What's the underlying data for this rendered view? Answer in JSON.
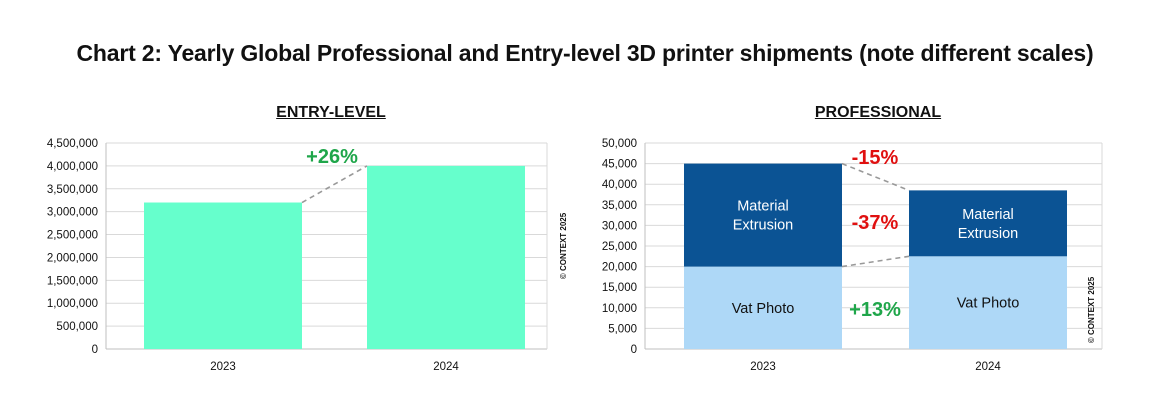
{
  "title": "Chart 2: Yearly Global Professional and Entry-level 3D printer shipments (note different scales)",
  "copyright": "© CONTEXT 2025",
  "colors": {
    "entry_bar": "#66FFCC",
    "material_extrusion": "#0B5394",
    "vat_photo": "#AED8F7",
    "positive": "#1FA64A",
    "negative": "#E01010",
    "connector": "#999999",
    "grid": "#D9D9D9"
  },
  "chart_data": [
    {
      "type": "bar",
      "title": "ENTRY-LEVEL",
      "categories": [
        "2023",
        "2024"
      ],
      "values": [
        3200000,
        4000000
      ],
      "ylim": [
        0,
        4500000
      ],
      "yticks": [
        "0",
        "500,000",
        "1,000,000",
        "1,500,000",
        "2,000,000",
        "2,500,000",
        "3,000,000",
        "3,500,000",
        "4,000,000",
        "4,500,000"
      ],
      "grid": true,
      "annotations": [
        {
          "text": "+26%",
          "color": "positive"
        }
      ]
    },
    {
      "type": "bar",
      "stacked": true,
      "title": "PROFESSIONAL",
      "categories": [
        "2023",
        "2024"
      ],
      "series": [
        {
          "name": "Vat Photo",
          "values": [
            20000,
            22500
          ],
          "color": "vat_photo"
        },
        {
          "name": "Material\nExtrusion",
          "values": [
            25000,
            16000
          ],
          "color": "material_extrusion"
        }
      ],
      "ylim": [
        0,
        50000
      ],
      "yticks": [
        "0",
        "5,000",
        "10,000",
        "15,000",
        "20,000",
        "25,000",
        "30,000",
        "35,000",
        "40,000",
        "45,000",
        "50,000"
      ],
      "grid": true,
      "annotations": [
        {
          "text": "-15%",
          "color": "negative",
          "target": "total"
        },
        {
          "text": "-37%",
          "color": "negative",
          "target": "Material Extrusion"
        },
        {
          "text": "+13%",
          "color": "positive",
          "target": "Vat Photo"
        }
      ]
    }
  ]
}
